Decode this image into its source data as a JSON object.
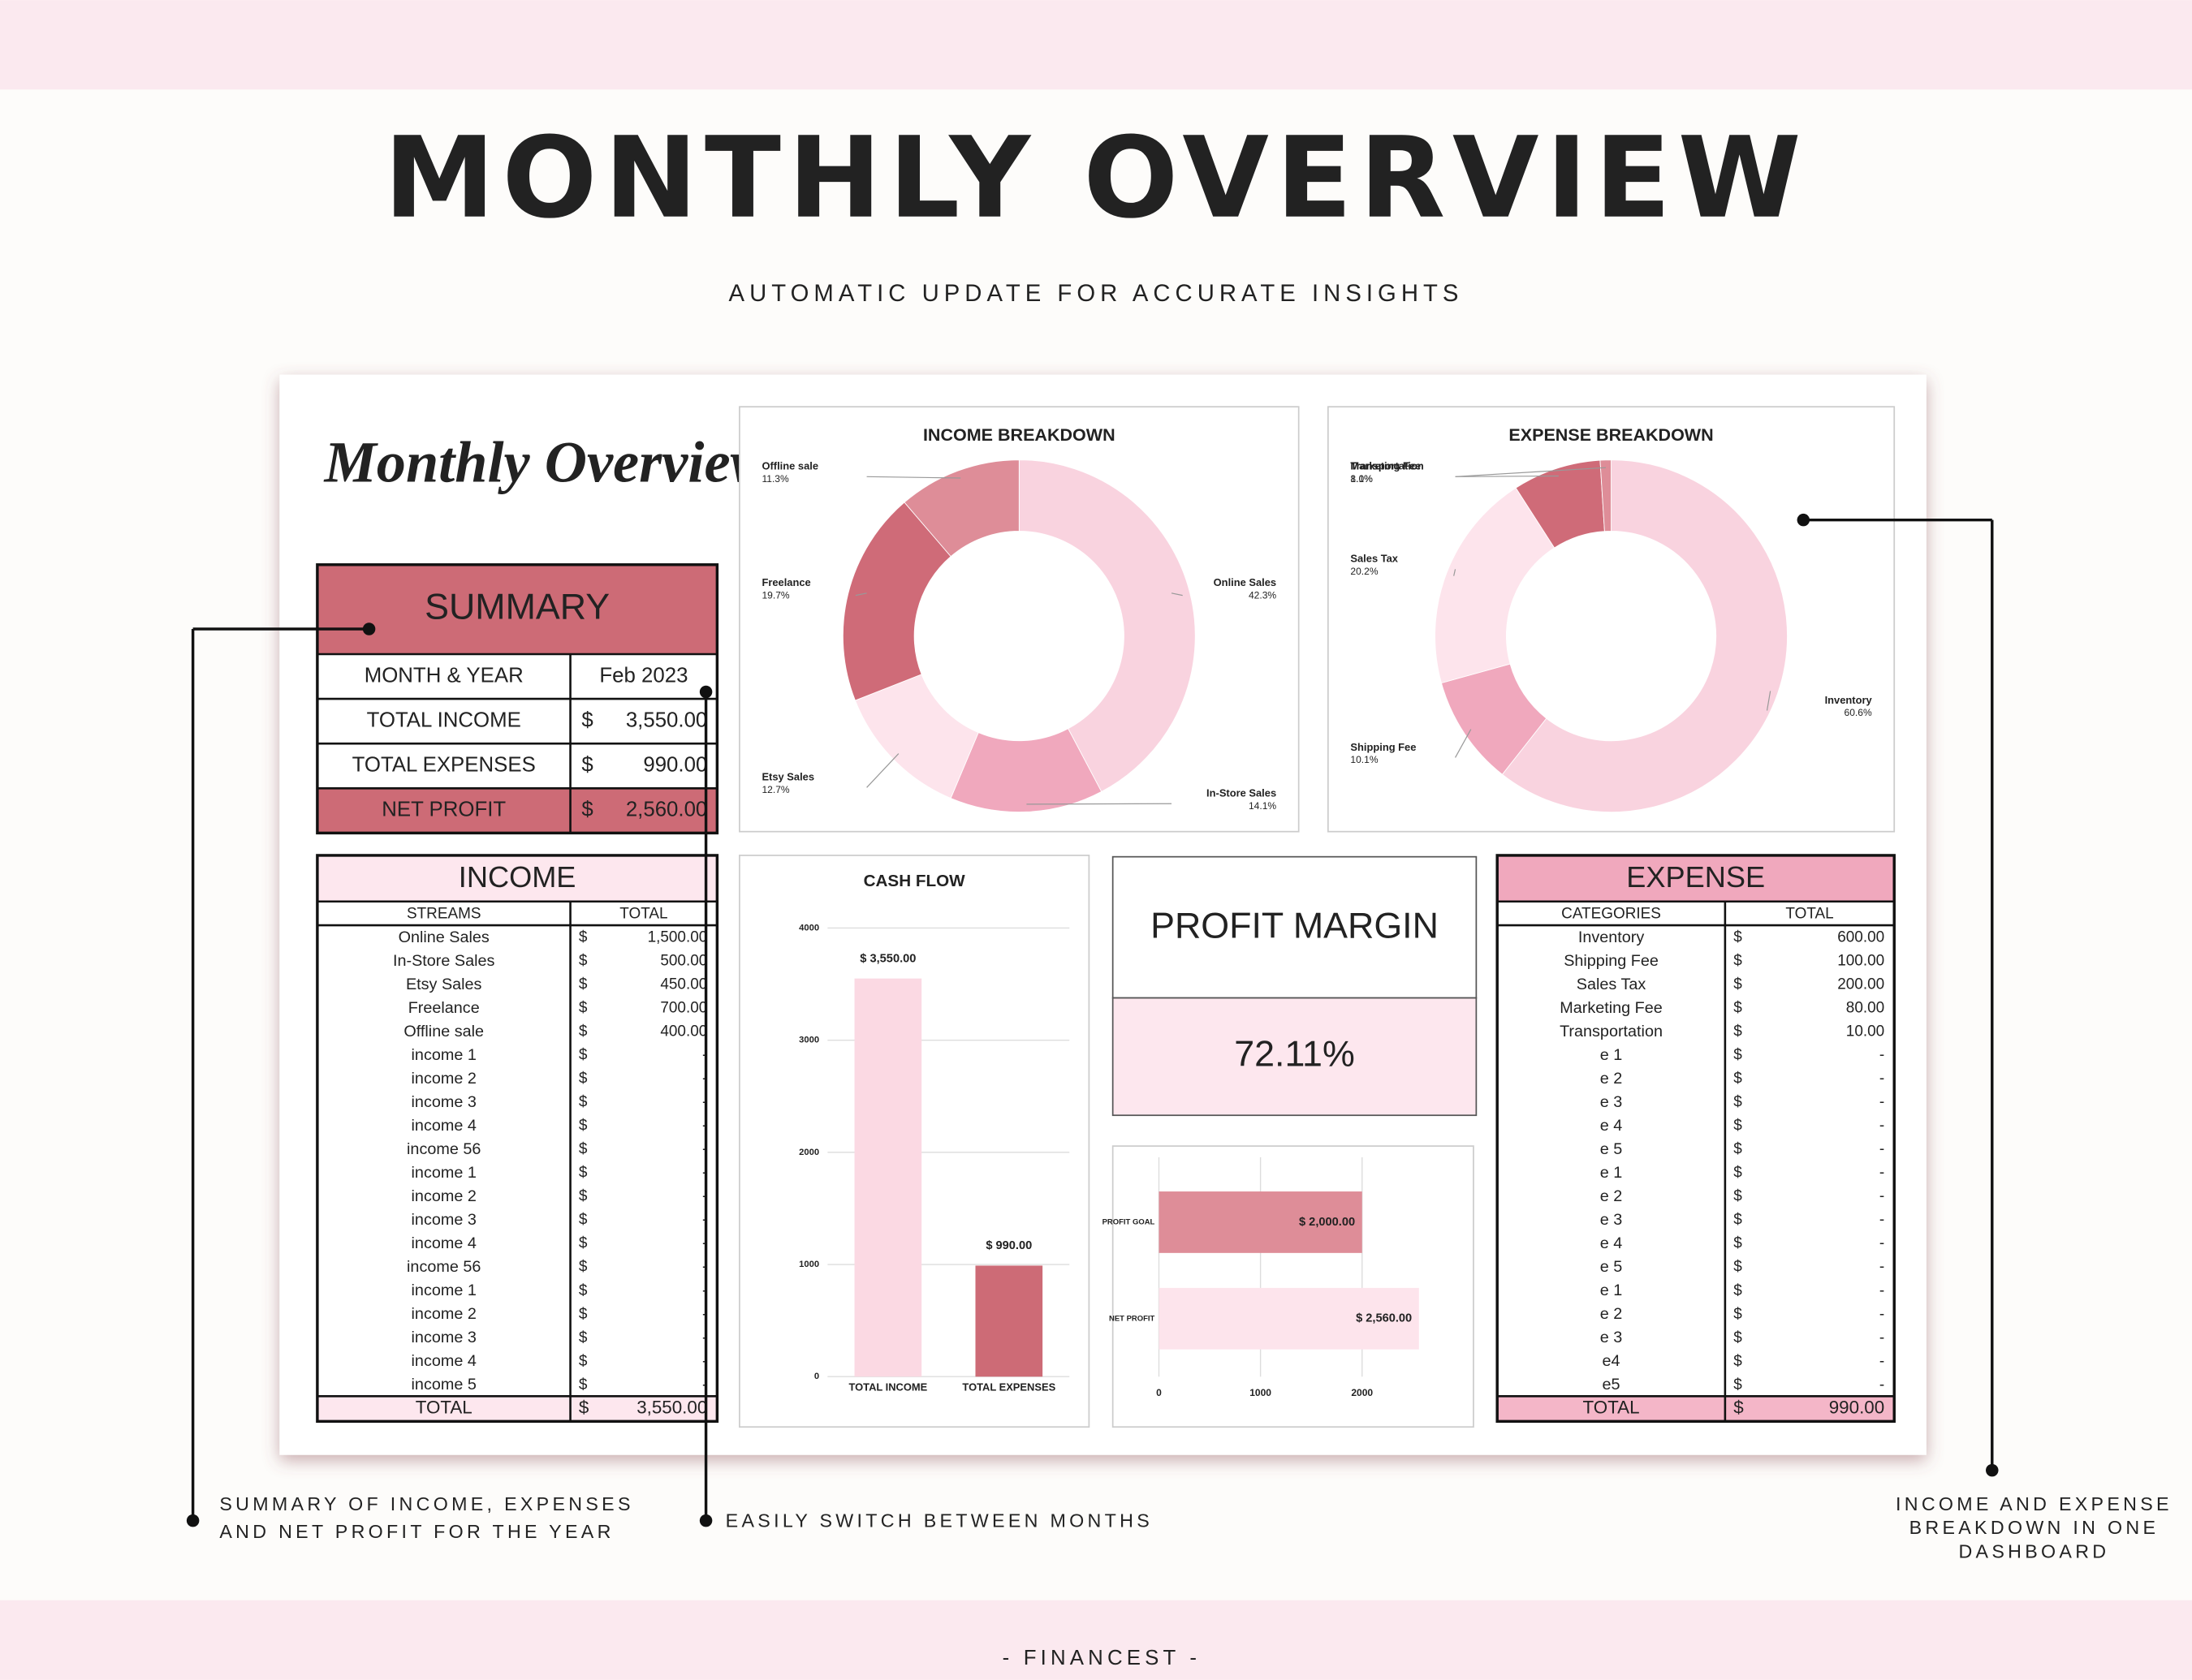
{
  "header": {
    "title": "MONTHLY OVERVIEW",
    "subtitle": "AUTOMATIC UPDATE FOR ACCURATE INSIGHTS"
  },
  "dashboard": {
    "title": "Monthly Overview"
  },
  "summary": {
    "title": "SUMMARY",
    "rows": [
      [
        "MONTH & YEAR",
        "Feb 2023"
      ],
      [
        "TOTAL INCOME",
        "$",
        "3,550.00"
      ],
      [
        "TOTAL EXPENSES",
        "$",
        "990.00"
      ],
      [
        "NET PROFIT",
        "$",
        "2,560.00"
      ]
    ]
  },
  "income_table": {
    "title": "INCOME",
    "headers": [
      "STREAMS",
      "TOTAL"
    ],
    "rows": [
      [
        "Online Sales",
        "$",
        "1,500.00"
      ],
      [
        "In-Store Sales",
        "$",
        "500.00"
      ],
      [
        "Etsy Sales",
        "$",
        "450.00"
      ],
      [
        "Freelance",
        "$",
        "700.00"
      ],
      [
        "Offline sale",
        "$",
        "400.00"
      ],
      [
        "income 1",
        "$",
        "-"
      ],
      [
        "income 2",
        "$",
        "-"
      ],
      [
        "income 3",
        "$",
        "-"
      ],
      [
        "income 4",
        "$",
        "-"
      ],
      [
        "income 56",
        "$",
        "-"
      ],
      [
        "income 1",
        "$",
        "-"
      ],
      [
        "income 2",
        "$",
        "-"
      ],
      [
        "income 3",
        "$",
        "-"
      ],
      [
        "income 4",
        "$",
        "-"
      ],
      [
        "income 56",
        "$",
        "-"
      ],
      [
        "income 1",
        "$",
        "-"
      ],
      [
        "income 2",
        "$",
        "-"
      ],
      [
        "income 3",
        "$",
        "-"
      ],
      [
        "income 4",
        "$",
        "-"
      ],
      [
        "income 5",
        "$",
        "-"
      ]
    ],
    "total": [
      "TOTAL",
      "$",
      "3,550.00"
    ]
  },
  "expense_table": {
    "title": "EXPENSE",
    "headers": [
      "CATEGORIES",
      "TOTAL"
    ],
    "rows": [
      [
        "Inventory",
        "$",
        "600.00"
      ],
      [
        "Shipping Fee",
        "$",
        "100.00"
      ],
      [
        "Sales Tax",
        "$",
        "200.00"
      ],
      [
        "Marketing Fee",
        "$",
        "80.00"
      ],
      [
        "Transportation",
        "$",
        "10.00"
      ],
      [
        "e 1",
        "$",
        "-"
      ],
      [
        "e 2",
        "$",
        "-"
      ],
      [
        "e 3",
        "$",
        "-"
      ],
      [
        "e 4",
        "$",
        "-"
      ],
      [
        "e 5",
        "$",
        "-"
      ],
      [
        "e 1",
        "$",
        "-"
      ],
      [
        "e 2",
        "$",
        "-"
      ],
      [
        "e 3",
        "$",
        "-"
      ],
      [
        "e 4",
        "$",
        "-"
      ],
      [
        "e 5",
        "$",
        "-"
      ],
      [
        "e 1",
        "$",
        "-"
      ],
      [
        "e 2",
        "$",
        "-"
      ],
      [
        "e 3",
        "$",
        "-"
      ],
      [
        "e4",
        "$",
        "-"
      ],
      [
        "e5",
        "$",
        "-"
      ]
    ],
    "total": [
      "TOTAL",
      "$",
      "990.00"
    ]
  },
  "profit_margin": {
    "title": "PROFIT MARGIN",
    "value": "72.11%"
  },
  "chart_data": [
    {
      "type": "pie",
      "donut": true,
      "title": "INCOME BREAKDOWN",
      "categories": [
        "Online Sales",
        "In-Store Sales",
        "Etsy Sales",
        "Freelance",
        "Offline sale"
      ],
      "values": [
        42.3,
        14.1,
        12.7,
        19.7,
        11.3
      ],
      "value_labels": [
        "42.3%",
        "14.1%",
        "12.7%",
        "19.7%",
        "11.3%"
      ],
      "colors": [
        "#f9d3df",
        "#f0a8bd",
        "#fde4ec",
        "#cf6b78",
        "#de8d98"
      ]
    },
    {
      "type": "pie",
      "donut": true,
      "title": "EXPENSE BREAKDOWN",
      "categories": [
        "Inventory",
        "Shipping Fee",
        "Sales Tax",
        "Marketing Fee",
        "Transportation"
      ],
      "values": [
        60.6,
        10.1,
        20.2,
        8.1,
        1.0
      ],
      "value_labels": [
        "60.6%",
        "10.1%",
        "20.2%",
        "8.1%",
        "1.0%"
      ],
      "colors": [
        "#f9d3df",
        "#f0a8bd",
        "#fde4ec",
        "#cf6b78",
        "#de8d98"
      ]
    },
    {
      "type": "bar",
      "orientation": "vertical",
      "title": "CASH FLOW",
      "categories": [
        "TOTAL INCOME",
        "TOTAL EXPENSES"
      ],
      "values": [
        3550,
        990
      ],
      "value_labels": [
        "$ 3,550.00",
        "$ 990.00"
      ],
      "colors": [
        "#fbd9e3",
        "#cd6b76"
      ],
      "ylim": [
        0,
        4000
      ],
      "yticks": [
        0,
        1000,
        2000,
        3000,
        4000
      ],
      "grid": true
    },
    {
      "type": "bar",
      "orientation": "horizontal",
      "categories": [
        "PROFIT GOAL",
        "NET PROFIT"
      ],
      "values": [
        2000,
        2560
      ],
      "value_labels": [
        "$ 2,000.00",
        "$ 2,560.00"
      ],
      "colors": [
        "#de8d98",
        "#fde4ec"
      ],
      "xlim": [
        0,
        3000
      ],
      "xticks": [
        0,
        1000,
        2000
      ],
      "grid": true
    }
  ],
  "callouts": [
    {
      "lines": [
        "SUMMARY OF INCOME, EXPENSES",
        "AND NET PROFIT FOR THE YEAR"
      ]
    },
    {
      "lines": [
        "EASILY SWITCH BETWEEN MONTHS"
      ]
    },
    {
      "lines": [
        "INCOME AND EXPENSE",
        "BREAKDOWN IN ONE",
        "DASHBOARD"
      ]
    }
  ],
  "footer": "- FINANCEST -"
}
